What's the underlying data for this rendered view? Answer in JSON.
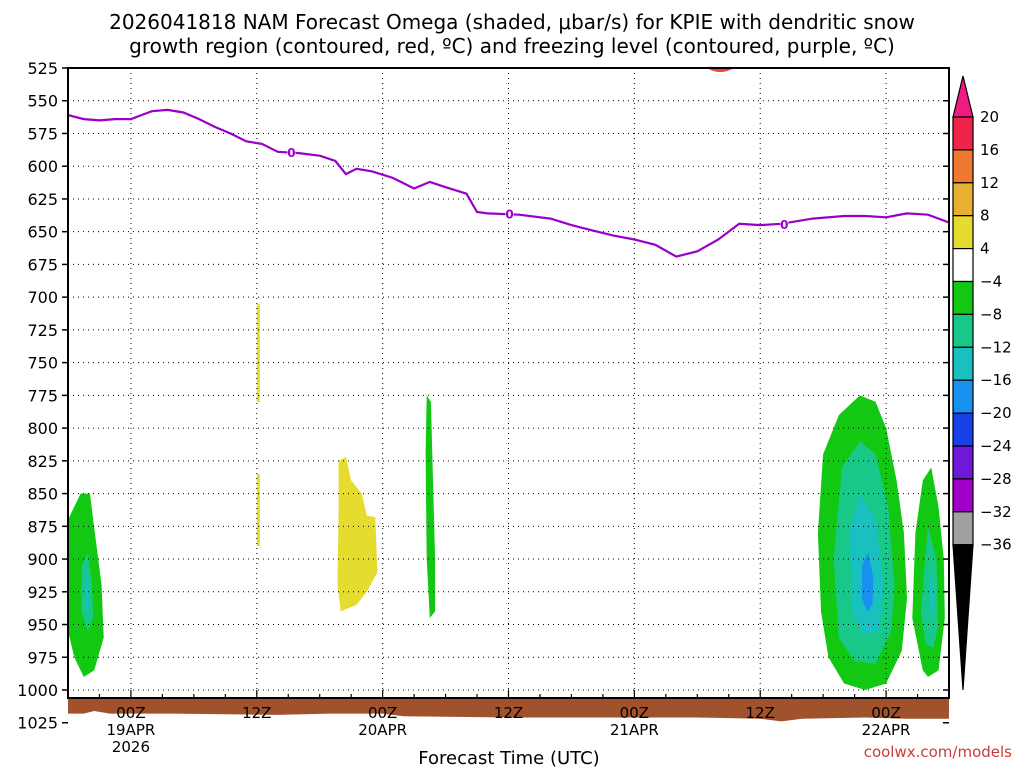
{
  "chart_data": {
    "type": "heatmap",
    "title_lines": [
      "2026041818 NAM Forecast Omega (shaded, μbar/s) for KPIE with dendritic snow",
      "growth region (contoured, red, ºC) and freezing level (contoured, purple, ºC)"
    ],
    "xlabel": "Forecast Time (UTC)",
    "credit": "coolwx.com/models",
    "forecast_hours_range": [
      0,
      84
    ],
    "x_ticks": [
      {
        "hour": 6,
        "lines": [
          "00Z",
          "19APR",
          "2026"
        ]
      },
      {
        "hour": 18,
        "lines": [
          "12Z"
        ]
      },
      {
        "hour": 30,
        "lines": [
          "00Z",
          "20APR"
        ]
      },
      {
        "hour": 42,
        "lines": [
          "12Z"
        ]
      },
      {
        "hour": 54,
        "lines": [
          "00Z",
          "21APR"
        ]
      },
      {
        "hour": 66,
        "lines": [
          "12Z"
        ]
      },
      {
        "hour": 78,
        "lines": [
          "00Z",
          "22APR"
        ]
      }
    ],
    "y_levels": [
      525,
      550,
      575,
      600,
      625,
      650,
      675,
      700,
      725,
      750,
      775,
      800,
      825,
      850,
      875,
      900,
      925,
      950,
      975,
      1000,
      1025
    ],
    "colorbar": {
      "labels": [
        "20",
        "16",
        "12",
        "8",
        "4",
        "−4",
        "−8",
        "−12",
        "−16",
        "−20",
        "−24",
        "−28",
        "−32",
        "−36"
      ],
      "colors": [
        "#f0244a",
        "#f07830",
        "#e8b030",
        "#e6dc30",
        "#ffffff",
        "#12c812",
        "#18c888",
        "#18c0c0",
        "#1890f0",
        "#1840e8",
        "#7018d8",
        "#a000c8",
        "#a0a0a0"
      ],
      "top_arrow_color": "#f01a80",
      "bottom_arrow_color": "#000000"
    },
    "freezing_level": {
      "label": "0",
      "color": "#9a00c8",
      "points": [
        [
          0,
          561
        ],
        [
          1.5,
          564
        ],
        [
          3,
          565
        ],
        [
          4.5,
          564
        ],
        [
          6,
          564
        ],
        [
          7,
          561
        ],
        [
          8,
          558
        ],
        [
          9.5,
          557
        ],
        [
          11,
          559
        ],
        [
          12.5,
          564
        ],
        [
          14,
          570
        ],
        [
          15.5,
          575
        ],
        [
          17,
          581
        ],
        [
          18.5,
          583
        ],
        [
          20,
          589
        ],
        [
          22,
          590
        ],
        [
          24,
          592
        ],
        [
          25.5,
          596
        ],
        [
          26.5,
          606
        ],
        [
          27.5,
          602
        ],
        [
          29,
          604
        ],
        [
          31,
          609
        ],
        [
          33,
          617
        ],
        [
          34.5,
          612
        ],
        [
          36,
          616
        ],
        [
          38,
          621
        ],
        [
          39,
          635
        ],
        [
          40,
          636
        ],
        [
          43,
          637
        ],
        [
          46,
          640
        ],
        [
          48,
          645
        ],
        [
          50,
          649
        ],
        [
          52,
          653
        ],
        [
          54,
          656
        ],
        [
          56,
          660
        ],
        [
          58,
          669
        ],
        [
          60,
          665
        ],
        [
          62,
          656
        ],
        [
          64,
          644
        ],
        [
          66,
          645
        ],
        [
          68,
          644
        ],
        [
          71,
          640
        ],
        [
          74,
          638
        ],
        [
          76,
          638
        ],
        [
          78,
          639
        ],
        [
          80,
          636
        ],
        [
          82,
          637
        ],
        [
          84,
          643
        ]
      ]
    },
    "dendritic_snow_growth": {
      "color": "#f04040",
      "note": "small contour at top edge near hour 62, 525 hPa"
    },
    "omega_regions": [
      {
        "value_band": "4 to 8",
        "color": "#e6dc30",
        "polygons": [
          [
            [
              18,
              705
            ],
            [
              18.3,
              705
            ],
            [
              18.3,
              780
            ],
            [
              18,
              780
            ]
          ],
          [
            [
              18,
              835
            ],
            [
              18.3,
              835
            ],
            [
              18.3,
              890
            ],
            [
              18,
              890
            ]
          ],
          [
            [
              25.8,
              825
            ],
            [
              26.5,
              822
            ],
            [
              27,
              840
            ],
            [
              28,
              850
            ],
            [
              28.5,
              867
            ],
            [
              29.3,
              868
            ],
            [
              29.5,
              910
            ],
            [
              28.5,
              925
            ],
            [
              27.5,
              935
            ],
            [
              26,
              940
            ],
            [
              25.7,
              920
            ],
            [
              25.8,
              860
            ]
          ]
        ]
      },
      {
        "value_band": "-4 to -8",
        "color": "#12c812",
        "polygons": [
          [
            [
              0,
              870
            ],
            [
              1.2,
              850
            ],
            [
              2.1,
              850
            ],
            [
              2.4,
              870
            ],
            [
              3.2,
              920
            ],
            [
              3.4,
              960
            ],
            [
              2.5,
              985
            ],
            [
              1.5,
              990
            ],
            [
              0.6,
              975
            ],
            [
              0,
              955
            ]
          ],
          [
            [
              34.2,
              775
            ],
            [
              34.6,
              780
            ],
            [
              34.8,
              840
            ],
            [
              35,
              900
            ],
            [
              35,
              940
            ],
            [
              34.5,
              945
            ],
            [
              34.2,
              900
            ],
            [
              34.1,
              820
            ]
          ],
          [
            [
              72,
              820
            ],
            [
              73.5,
              790
            ],
            [
              75.5,
              775
            ],
            [
              77,
              780
            ],
            [
              78,
              800
            ],
            [
              79,
              840
            ],
            [
              79.7,
              880
            ],
            [
              80,
              930
            ],
            [
              79.5,
              970
            ],
            [
              78,
              995
            ],
            [
              76,
              1000
            ],
            [
              74,
              995
            ],
            [
              72.5,
              975
            ],
            [
              71.8,
              940
            ],
            [
              71.5,
              880
            ]
          ],
          [
            [
              80.8,
              880
            ],
            [
              81.5,
              840
            ],
            [
              82.3,
              830
            ],
            [
              83,
              860
            ],
            [
              83.5,
              900
            ],
            [
              83.6,
              945
            ],
            [
              83,
              985
            ],
            [
              82,
              990
            ],
            [
              81.5,
              985
            ],
            [
              80.5,
              945
            ]
          ]
        ]
      },
      {
        "value_band": "-8 to -12",
        "color": "#18c888",
        "polygons": [
          [
            [
              1.3,
              905
            ],
            [
              1.9,
              895
            ],
            [
              2.3,
              920
            ],
            [
              2.4,
              945
            ],
            [
              1.9,
              955
            ],
            [
              1.3,
              940
            ]
          ],
          [
            [
              73,
              900
            ],
            [
              73.8,
              830
            ],
            [
              75.5,
              810
            ],
            [
              77,
              820
            ],
            [
              78.2,
              860
            ],
            [
              78.8,
              920
            ],
            [
              78.5,
              955
            ],
            [
              77,
              980
            ],
            [
              75,
              978
            ],
            [
              73.5,
              960
            ]
          ],
          [
            [
              81.3,
              940
            ],
            [
              82,
              875
            ],
            [
              82.8,
              900
            ],
            [
              83,
              950
            ],
            [
              82.5,
              968
            ],
            [
              81.8,
              965
            ]
          ]
        ]
      },
      {
        "value_band": "-12 to -16",
        "color": "#18c0c0",
        "polygons": [
          [
            [
              1.6,
              920
            ],
            [
              1.9,
              910
            ],
            [
              2,
              935
            ],
            [
              1.7,
              942
            ]
          ],
          [
            [
              74.5,
              880
            ],
            [
              75.5,
              850
            ],
            [
              77,
              870
            ],
            [
              77.8,
              920
            ],
            [
              77.3,
              955
            ],
            [
              75.8,
              958
            ],
            [
              74.8,
              940
            ]
          ],
          [
            [
              82.2,
              910
            ],
            [
              82.6,
              925
            ],
            [
              82.4,
              945
            ],
            [
              82.1,
              935
            ]
          ]
        ]
      },
      {
        "value_band": "-16 to -20",
        "color": "#1890f0",
        "polygons": [
          [
            [
              75.7,
              905
            ],
            [
              76.3,
              895
            ],
            [
              76.8,
              915
            ],
            [
              76.7,
              935
            ],
            [
              76.2,
              940
            ],
            [
              75.7,
              930
            ]
          ]
        ]
      }
    ],
    "surface_ground": {
      "color": "#a0522d",
      "top_points": [
        [
          0,
          1018
        ],
        [
          1.5,
          1018
        ],
        [
          2.5,
          1016
        ],
        [
          4,
          1018
        ],
        [
          10,
          1018
        ],
        [
          20,
          1019
        ],
        [
          25,
          1018
        ],
        [
          30,
          1018
        ],
        [
          32,
          1020
        ],
        [
          42,
          1021
        ],
        [
          50,
          1021
        ],
        [
          60,
          1021
        ],
        [
          66,
          1022
        ],
        [
          68,
          1024
        ],
        [
          70,
          1022
        ],
        [
          76,
          1021
        ],
        [
          80,
          1022
        ],
        [
          84,
          1022
        ]
      ]
    }
  }
}
